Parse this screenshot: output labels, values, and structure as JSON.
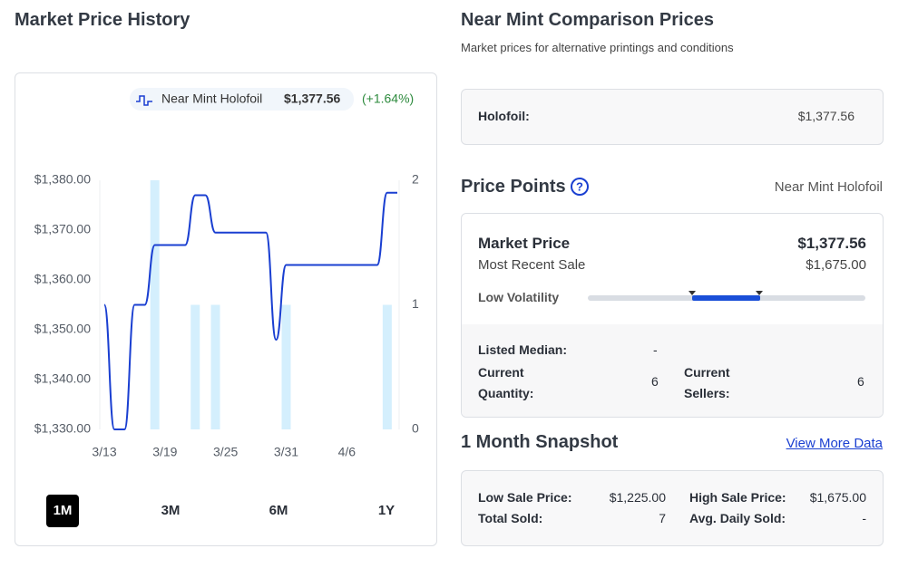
{
  "chart_data": {
    "type": "line",
    "title": "Market Price History",
    "categories": [
      "3/13",
      null,
      null,
      null,
      null,
      null,
      "3/19",
      null,
      null,
      null,
      null,
      null,
      "3/25",
      null,
      null,
      null,
      null,
      null,
      "3/31",
      null,
      null,
      null,
      null,
      null,
      "4/6",
      null,
      null,
      null,
      null,
      null
    ],
    "series": [
      {
        "name": "Near Mint Holofoil",
        "color": "#1a3fd1",
        "values": [
          1355,
          1330,
          1330,
          1355,
          1355,
          1367,
          1367,
          1367,
          1367,
          1377,
          1377,
          1369.5,
          1369.5,
          1369.5,
          1369.5,
          1369.5,
          1369.5,
          1348,
          1363,
          1363,
          1363,
          1363,
          1363,
          1363,
          1363,
          1363,
          1363,
          1363,
          1377.5,
          1377.5
        ]
      },
      {
        "type": "bar",
        "color": "#d4effd",
        "axis": "y2",
        "values": [
          0,
          0,
          0,
          0,
          0,
          2,
          0,
          0,
          0,
          1,
          0,
          1,
          0,
          0,
          0,
          0,
          0,
          0,
          1,
          0,
          0,
          0,
          0,
          0,
          0,
          0,
          0,
          0,
          1,
          0
        ]
      }
    ],
    "annotations": [
      "$1,377.56",
      "(+1.64%)"
    ],
    "ylim": [
      1330,
      1380
    ],
    "yticks": [
      {
        "value": 1330,
        "label": "$1,330.00"
      },
      {
        "value": 1340,
        "label": "$1,340.00"
      },
      {
        "value": 1350,
        "label": "$1,350.00"
      },
      {
        "value": 1360,
        "label": "$1,360.00"
      },
      {
        "value": 1370,
        "label": "$1,370.00"
      },
      {
        "value": 1380,
        "label": "$1,380.00"
      }
    ],
    "y2lim": [
      0,
      2
    ],
    "y2ticks": [
      0,
      1,
      2
    ],
    "grid": false
  },
  "ranges": [
    "1M",
    "3M",
    "6M",
    "1Y"
  ],
  "comparison": {
    "title": "Near Mint Comparison Prices",
    "subtitle": "Market prices for alternative printings and conditions",
    "rows": [
      {
        "label": "Holofoil:",
        "price": "$1,377.56"
      }
    ]
  },
  "price_points": {
    "title": "Price Points",
    "condition": "Near Mint Holofoil",
    "market_price_label": "Market Price",
    "market_price": "$1,377.56",
    "recent_sale_label": "Most Recent Sale",
    "recent_sale": "$1,675.00",
    "volatility": "Low Volatility",
    "listed_median_label": "Listed Median:",
    "listed_median": "-",
    "current_quantity_label": "Current Quantity:",
    "current_quantity": 6,
    "current_sellers_label": "Current Sellers:",
    "current_sellers": 6
  },
  "snapshot": {
    "title": "1 Month Snapshot",
    "link": "View More Data",
    "low_sale_label": "Low Sale Price:",
    "low_sale": "$1,225.00",
    "high_sale_label": "High Sale Price:",
    "high_sale": "$1,675.00",
    "total_sold_label": "Total Sold:",
    "total_sold": 7,
    "avg_daily_label": "Avg. Daily Sold:",
    "avg_daily": "-"
  }
}
